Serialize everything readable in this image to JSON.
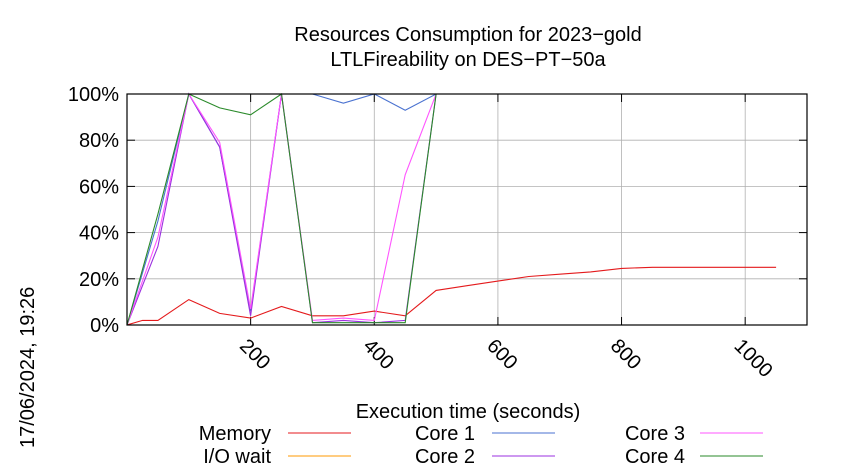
{
  "chart_data": {
    "type": "line",
    "title": "Resources Consumption for 2023−gold",
    "subtitle": "LTLFireability on DES−PT−50a",
    "xlabel": "Execution time (seconds)",
    "ylabel": "",
    "side_label": "17/06/2024, 19:26",
    "xlim": [
      0,
      1100
    ],
    "ylim": [
      0,
      100
    ],
    "x_ticks": [
      200,
      400,
      600,
      800,
      1000
    ],
    "y_ticks": [
      0,
      20,
      40,
      60,
      80,
      100
    ],
    "y_tick_labels": [
      "0%",
      "20%",
      "40%",
      "60%",
      "80%",
      "100%"
    ],
    "grid": true,
    "legend_position": "bottom",
    "series": [
      {
        "name": "Memory",
        "color": "#e41a1c",
        "x": [
          0,
          25,
          50,
          100,
          150,
          200,
          250,
          300,
          350,
          400,
          450,
          500,
          550,
          600,
          650,
          700,
          750,
          800,
          850,
          900,
          950,
          1000,
          1050
        ],
        "y": [
          0,
          2,
          2,
          11,
          5,
          3,
          8,
          4,
          4,
          6,
          4,
          15,
          17,
          19,
          21,
          22,
          23,
          24.5,
          25,
          25,
          25,
          25,
          25
        ]
      },
      {
        "name": "I/O wait",
        "color": "#ff9900",
        "x": [
          0,
          1050
        ],
        "y": [
          0,
          0
        ]
      },
      {
        "name": "Core 1",
        "color": "#4a72d0",
        "x": [
          0,
          50,
          100,
          150,
          200,
          250,
          300,
          350,
          400,
          450,
          500,
          550,
          600,
          650,
          700,
          750,
          800,
          850,
          900,
          950,
          1000,
          1050
        ],
        "y": [
          0,
          45,
          100,
          77,
          6,
          100,
          100,
          96,
          100,
          93,
          100,
          100,
          100,
          100,
          100,
          100,
          100,
          100,
          100,
          100,
          100,
          100
        ]
      },
      {
        "name": "Core 2",
        "color": "#9b30e0",
        "x": [
          0,
          50,
          100,
          150,
          200,
          250,
          300,
          350,
          400,
          450,
          500,
          550,
          600,
          650,
          700,
          750,
          800,
          850,
          900,
          950,
          1000,
          1050
        ],
        "y": [
          0,
          34,
          100,
          77,
          4,
          100,
          1,
          2,
          1,
          2,
          100,
          100,
          100,
          100,
          100,
          100,
          100,
          100,
          100,
          100,
          100,
          100
        ]
      },
      {
        "name": "Core 3",
        "color": "#ff55ff",
        "x": [
          0,
          50,
          100,
          150,
          200,
          250,
          300,
          350,
          400,
          450,
          500,
          550,
          600,
          650,
          700,
          750,
          800,
          850,
          900,
          950,
          1000,
          1050
        ],
        "y": [
          0,
          38,
          100,
          79,
          7,
          100,
          2,
          3,
          2,
          65,
          100,
          100,
          100,
          100,
          100,
          100,
          100,
          100,
          100,
          100,
          100,
          100
        ]
      },
      {
        "name": "Core 4",
        "color": "#2a8a2a",
        "x": [
          0,
          50,
          100,
          150,
          200,
          250,
          300,
          350,
          400,
          450,
          500,
          550,
          600,
          650,
          700,
          750,
          800,
          850,
          900,
          950,
          1000,
          1050
        ],
        "y": [
          0,
          48,
          100,
          94,
          91,
          100,
          1,
          1,
          1,
          1,
          100,
          100,
          100,
          100,
          100,
          100,
          100,
          100,
          100,
          100,
          100,
          100
        ]
      }
    ]
  }
}
